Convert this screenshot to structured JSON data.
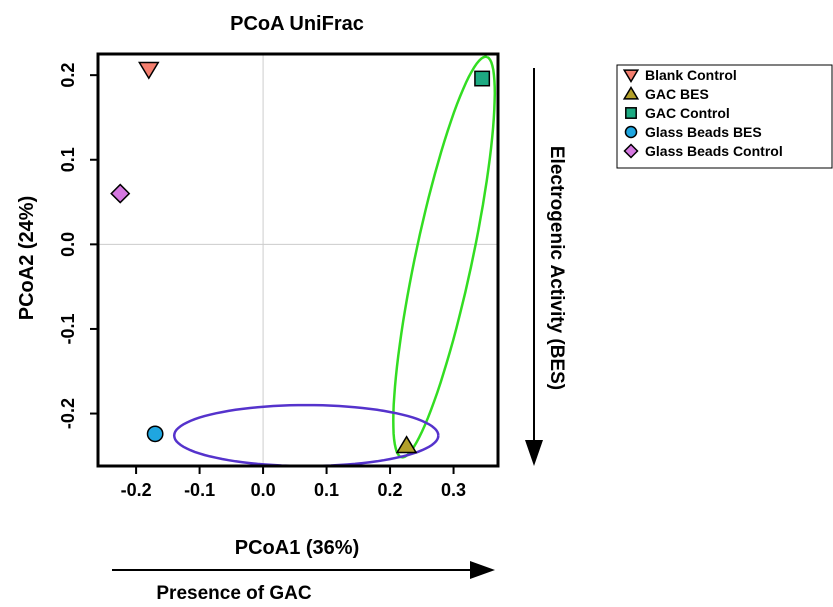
{
  "chart_data": {
    "type": "scatter",
    "title": "PCoA UniFrac",
    "xlabel": "PCoA1 (36%)",
    "ylabel": "PCoA2 (24%)",
    "xlim": [
      -0.26,
      0.37
    ],
    "ylim": [
      -0.262,
      0.225
    ],
    "x_ticks": [
      -0.2,
      -0.1,
      0.0,
      0.1,
      0.2,
      0.3
    ],
    "x_tick_labels": [
      "-0.2",
      "-0.1",
      "0.0",
      "0.1",
      "0.2",
      "0.3"
    ],
    "y_ticks": [
      -0.2,
      -0.1,
      0.0,
      0.1,
      0.2
    ],
    "y_tick_labels": [
      "-0.2",
      "-0.1",
      "0.0",
      "0.1",
      "0.2"
    ],
    "reference_lines": {
      "x": 0,
      "y": 0
    },
    "legend_position": "outside top-right",
    "series": [
      {
        "name": "Blank Control",
        "marker": "triangle-down",
        "color": "#f47f6f",
        "points": [
          {
            "x": -0.18,
            "y": 0.207
          }
        ]
      },
      {
        "name": "GAC BES",
        "marker": "triangle-up",
        "color": "#b3a02a",
        "points": [
          {
            "x": 0.226,
            "y": -0.238
          }
        ]
      },
      {
        "name": "GAC Control",
        "marker": "square",
        "color": "#1daa82",
        "points": [
          {
            "x": 0.345,
            "y": 0.196
          }
        ]
      },
      {
        "name": "Glass Beads BES",
        "marker": "circle",
        "color": "#1fa6e0",
        "points": [
          {
            "x": -0.17,
            "y": -0.224
          }
        ]
      },
      {
        "name": "Glass Beads Control",
        "marker": "diamond",
        "color": "#d578e0",
        "points": [
          {
            "x": -0.225,
            "y": 0.06
          }
        ]
      }
    ],
    "ellipses": [
      {
        "group": "GAC samples",
        "color": "#33dd22",
        "center": [
          0.285,
          -0.015
        ],
        "semi_major": 0.246,
        "semi_minor": 0.044,
        "angle_deg": 74
      },
      {
        "group": "BES samples",
        "color": "#5533cc",
        "center": [
          0.068,
          -0.226
        ],
        "semi_major": 0.208,
        "semi_minor": 0.036,
        "angle_deg": 0
      }
    ],
    "annotations": [
      {
        "text": "Electrogenic Activity (BES)",
        "arrow": "down"
      },
      {
        "text": "Presence of GAC",
        "arrow": "right"
      }
    ]
  }
}
